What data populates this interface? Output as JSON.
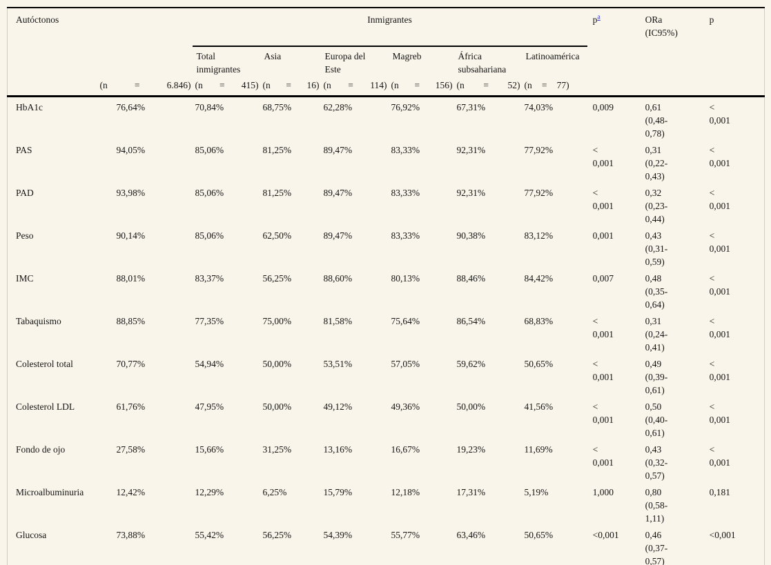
{
  "colors": {
    "page_background": "#f9f5ea",
    "rule": "#000000",
    "footnote_link": "#3939c8"
  },
  "table": {
    "header": {
      "row_label_col": "Autóctonos",
      "group_label": "Inmigrantes",
      "p_adj_label": "p",
      "p_adj_sup": "a",
      "ora_label": "ORa (IC95%)",
      "p_label": "p",
      "subcolumns": [
        "Total inmigrantes",
        "Asia",
        "Europa del Este",
        "Magreb",
        "África subsahariana",
        "Latinoamérica"
      ],
      "n_counts": [
        [
          "(n",
          "=",
          "6.846)"
        ],
        [
          "(n",
          "=",
          "415)"
        ],
        [
          "(n",
          "=",
          "16)"
        ],
        [
          "(n",
          "=",
          "114)"
        ],
        [
          "(n",
          "=",
          "156)"
        ],
        [
          "(n",
          "=",
          "52)"
        ],
        [
          "(n",
          "=",
          "77)"
        ]
      ]
    },
    "rows": [
      {
        "label": "HbA1c",
        "values": [
          "76,64%",
          "70,84%",
          "68,75%",
          "62,28%",
          "76,92%",
          "67,31%",
          "74,03%"
        ],
        "p_adj": "0,009",
        "ora": "0,61 (0,48-0,78)",
        "p": "< 0,001"
      },
      {
        "label": "PAS",
        "values": [
          "94,05%",
          "85,06%",
          "81,25%",
          "89,47%",
          "83,33%",
          "92,31%",
          "77,92%"
        ],
        "p_adj": "< 0,001",
        "ora": "0,31 (0,22-0,43)",
        "p": "< 0,001"
      },
      {
        "label": "PAD",
        "values": [
          "93,98%",
          "85,06%",
          "81,25%",
          "89,47%",
          "83,33%",
          "92,31%",
          "77,92%"
        ],
        "p_adj": "< 0,001",
        "ora": "0,32 (0,23-0,44)",
        "p": "< 0,001"
      },
      {
        "label": "Peso",
        "values": [
          "90,14%",
          "85,06%",
          "62,50%",
          "89,47%",
          "83,33%",
          "90,38%",
          "83,12%"
        ],
        "p_adj": "0,001",
        "ora": "0,43 (0,31-0,59)",
        "p": "< 0,001"
      },
      {
        "label": "IMC",
        "values": [
          "88,01%",
          "83,37%",
          "56,25%",
          "88,60%",
          "80,13%",
          "88,46%",
          "84,42%"
        ],
        "p_adj": "0,007",
        "ora": "0,48 (0,35-0,64)",
        "p": "< 0,001"
      },
      {
        "label": "Tabaquismo",
        "values": [
          "88,85%",
          "77,35%",
          "75,00%",
          "81,58%",
          "75,64%",
          "86,54%",
          "68,83%"
        ],
        "p_adj": "< 0,001",
        "ora": "0,31 (0,24-0,41)",
        "p": "< 0,001"
      },
      {
        "label": "Colesterol total",
        "values": [
          "70,77%",
          "54,94%",
          "50,00%",
          "53,51%",
          "57,05%",
          "59,62%",
          "50,65%"
        ],
        "p_adj": "< 0,001",
        "ora": "0,49 (0,39-0,61)",
        "p": "< 0,001"
      },
      {
        "label": "Colesterol LDL",
        "values": [
          "61,76%",
          "47,95%",
          "50,00%",
          "49,12%",
          "49,36%",
          "50,00%",
          "41,56%"
        ],
        "p_adj": "< 0,001",
        "ora": "0,50 (0,40-0,61)",
        "p": "< 0,001"
      },
      {
        "label": "Fondo de ojo",
        "values": [
          "27,58%",
          "15,66%",
          "31,25%",
          "13,16%",
          "16,67%",
          "19,23%",
          "11,69%"
        ],
        "p_adj": "< 0,001",
        "ora": "0,43 (0,32-0,57)",
        "p": "< 0,001"
      },
      {
        "label": "Microalbuminuria",
        "values": [
          "12,42%",
          "12,29%",
          "6,25%",
          "15,79%",
          "12,18%",
          "17,31%",
          "5,19%"
        ],
        "p_adj": "1,000",
        "ora": "0,80 (0,58-1,11)",
        "p": "0,181"
      },
      {
        "label": "Glucosa",
        "values": [
          "73,88%",
          "55,42%",
          "56,25%",
          "54,39%",
          "55,77%",
          "63,46%",
          "50,65%"
        ],
        "p_adj": "<0,001",
        "ora": "0,46 (0,37-0,57)",
        "p": "<0,001"
      }
    ]
  }
}
